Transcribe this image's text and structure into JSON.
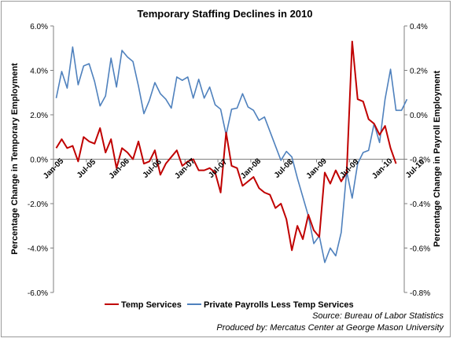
{
  "chart_data": {
    "type": "line",
    "title": "Temporary Staffing Declines in 2010",
    "ylabel_left": "Percentage  Change in Temporary Employment",
    "ylabel_right": "Percentage Change in Payroll Employment",
    "xlabel": "",
    "ylim_left": [
      -6.0,
      6.0
    ],
    "ylim_right": [
      -0.8,
      0.4
    ],
    "yticks_left": [
      "6.0%",
      "4.0%",
      "2.0%",
      "0.0%",
      "-2.0%",
      "-4.0%",
      "-6.0%"
    ],
    "yticks_right": [
      "0.4%",
      "0.2%",
      "0.0%",
      "-0.2%",
      "-0.4%",
      "-0.6%",
      "-0.8%"
    ],
    "x_start": "Jan-05",
    "x_ticks": [
      "Jan-05",
      "Jul-05",
      "Jan-06",
      "Jul-06",
      "Jan-07",
      "Jul-07",
      "Jan-08",
      "Jul-08",
      "Jan-09",
      "Jul-09",
      "Jan-10",
      "Jul-10"
    ],
    "grid": false,
    "legend_position": "bottom",
    "series": [
      {
        "name": "Temp Services",
        "axis": "left",
        "color": "#c00000",
        "values": [
          0.5,
          0.9,
          0.5,
          0.6,
          -0.1,
          1.0,
          0.8,
          0.7,
          1.4,
          0.3,
          0.9,
          -0.4,
          0.5,
          0.3,
          0.0,
          0.8,
          -0.2,
          -0.1,
          0.4,
          -0.7,
          -0.2,
          0.1,
          0.4,
          -0.3,
          -0.1,
          0.0,
          -0.5,
          -0.5,
          -0.4,
          -0.6,
          -1.5,
          1.2,
          -0.3,
          -0.4,
          -1.2,
          -1.0,
          -0.8,
          -1.3,
          -1.5,
          -1.6,
          -2.2,
          -2.0,
          -2.7,
          -4.1,
          -3.0,
          -3.6,
          -2.5,
          -3.2,
          -3.5,
          -0.6,
          -1.1,
          -0.5,
          -1.0,
          -0.6,
          5.3,
          2.7,
          2.6,
          1.8,
          1.6,
          1.1,
          1.5,
          0.5,
          -0.2
        ]
      },
      {
        "name": "Private Payrolls Less Temp Services",
        "axis": "right",
        "color": "#4f81bd",
        "values": [
          0.075,
          0.195,
          0.12,
          0.305,
          0.135,
          0.22,
          0.23,
          0.15,
          0.04,
          0.085,
          0.255,
          0.125,
          0.29,
          0.26,
          0.24,
          0.13,
          0.005,
          0.065,
          0.145,
          0.095,
          0.07,
          0.03,
          0.17,
          0.155,
          0.17,
          0.075,
          0.16,
          0.075,
          0.125,
          0.045,
          0.025,
          -0.09,
          0.025,
          0.03,
          0.095,
          0.035,
          0.02,
          -0.025,
          -0.01,
          -0.075,
          -0.14,
          -0.205,
          -0.165,
          -0.19,
          -0.285,
          -0.37,
          -0.455,
          -0.58,
          -0.545,
          -0.665,
          -0.6,
          -0.635,
          -0.53,
          -0.255,
          -0.375,
          -0.22,
          -0.17,
          -0.16,
          -0.04,
          -0.125,
          0.07,
          0.205,
          0.02,
          0.02,
          0.07
        ]
      }
    ]
  },
  "source": "Source: Bureau of Labor Statistics",
  "producer": "Produced by: Mercatus Center at George Mason University"
}
